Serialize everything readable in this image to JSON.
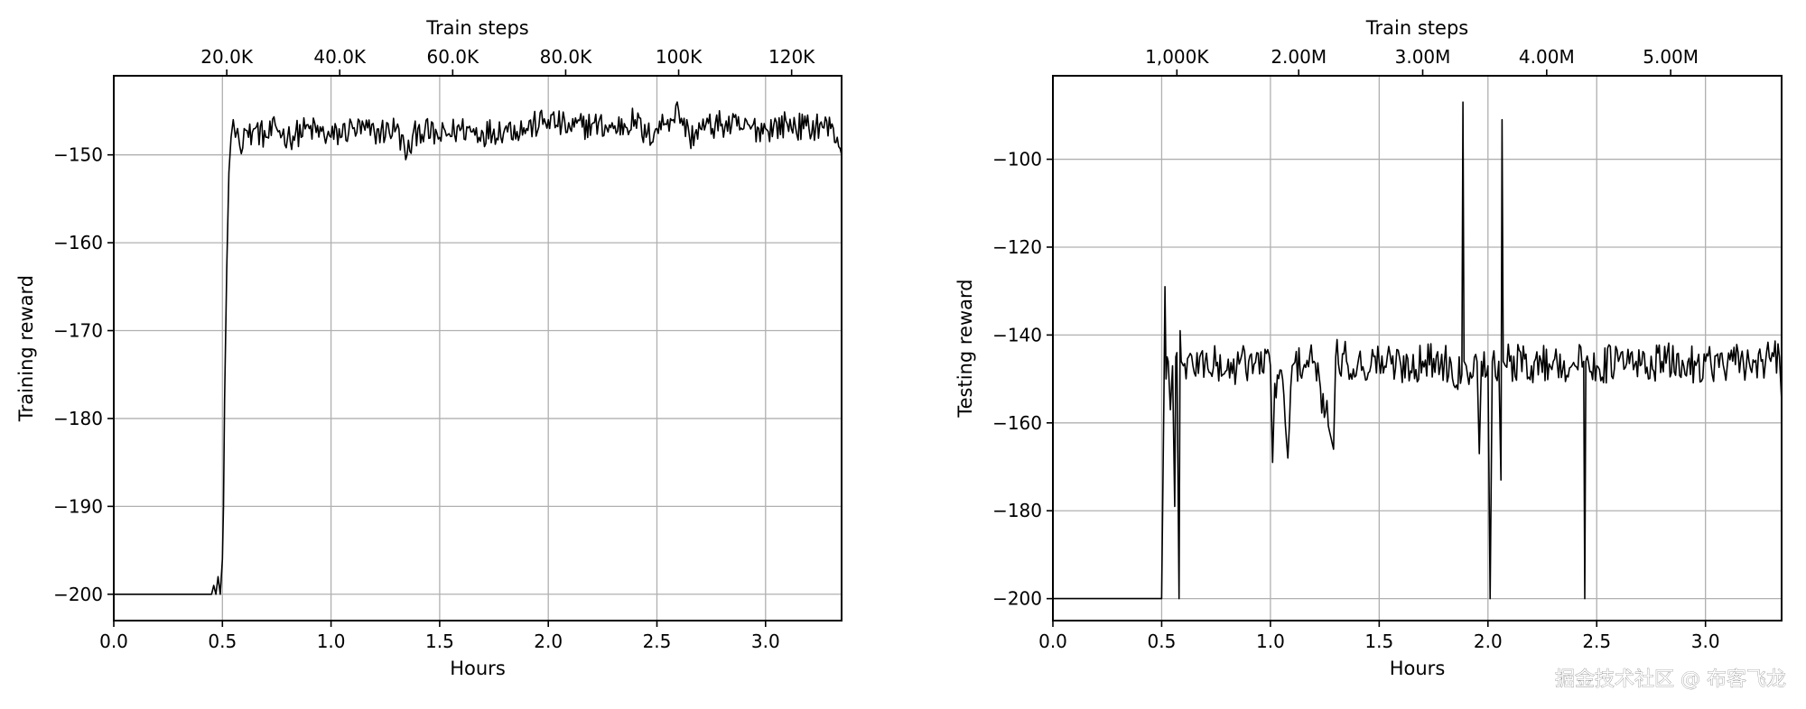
{
  "chart_data": [
    {
      "type": "line",
      "title": "",
      "xlabel": "Hours",
      "ylabel": "Training reward",
      "top_xlabel": "Train steps",
      "xlim": [
        0,
        3.35
      ],
      "ylim": [
        -203,
        -141
      ],
      "x_ticks": [
        0.0,
        0.5,
        1.0,
        1.5,
        2.0,
        2.5,
        3.0
      ],
      "x_tick_labels": [
        "0.0",
        "0.5",
        "1.0",
        "1.5",
        "2.0",
        "2.5",
        "3.0"
      ],
      "y_ticks": [
        -200,
        -190,
        -180,
        -170,
        -160,
        -150
      ],
      "y_tick_labels": [
        "−200",
        "−190",
        "−180",
        "−170",
        "−160",
        "−150"
      ],
      "top_ticks_hours": [
        0.52,
        1.04,
        1.56,
        2.08,
        2.6,
        3.12
      ],
      "top_tick_labels": [
        "20.0K",
        "40.0K",
        "60.0K",
        "80.0K",
        "100K",
        "120K"
      ],
      "grid": true,
      "series": [
        {
          "x": [
            0.0,
            0.1,
            0.2,
            0.3,
            0.4,
            0.45,
            0.46,
            0.47,
            0.48,
            0.49,
            0.5,
            0.505,
            0.51,
            0.52,
            0.53,
            0.54,
            0.55,
            0.56,
            0.57,
            0.58,
            0.6,
            0.62,
            0.65,
            0.7,
            0.75,
            0.8,
            0.9,
            1.0,
            1.1,
            1.2,
            1.3,
            1.35,
            1.4,
            1.5,
            1.6,
            1.7,
            1.8,
            1.9,
            2.0,
            2.1,
            2.2,
            2.3,
            2.4,
            2.45,
            2.5,
            2.55,
            2.6,
            2.65,
            2.7,
            2.8,
            2.9,
            3.0,
            3.1,
            3.2,
            3.25,
            3.3,
            3.33,
            3.35
          ],
          "y": [
            -200,
            -200,
            -200,
            -200,
            -200,
            -200,
            -199,
            -200,
            -198,
            -200,
            -196,
            -190,
            -178,
            -163,
            -152,
            -148,
            -146,
            -148,
            -147,
            -149,
            -147,
            -148,
            -147,
            -148,
            -147,
            -148,
            -147,
            -148,
            -147,
            -147.5,
            -147,
            -150,
            -147,
            -148,
            -147,
            -147.5,
            -147,
            -147,
            -146,
            -147,
            -146.5,
            -147,
            -146,
            -148,
            -147,
            -146,
            -145,
            -148,
            -147,
            -146.5,
            -147,
            -147,
            -146.5,
            -147,
            -146.5,
            -147,
            -148,
            -150
          ]
        }
      ]
    },
    {
      "type": "line",
      "title": "",
      "xlabel": "Hours",
      "ylabel": "Testing reward",
      "top_xlabel": "Train steps",
      "xlim": [
        0,
        3.35
      ],
      "ylim": [
        -205,
        -81
      ],
      "x_ticks": [
        0.0,
        0.5,
        1.0,
        1.5,
        2.0,
        2.5,
        3.0
      ],
      "x_tick_labels": [
        "0.0",
        "0.5",
        "1.0",
        "1.5",
        "2.0",
        "2.5",
        "3.0"
      ],
      "y_ticks": [
        -200,
        -180,
        -160,
        -140,
        -120,
        -100
      ],
      "y_tick_labels": [
        "−200",
        "−180",
        "−160",
        "−140",
        "−120",
        "−100"
      ],
      "top_ticks_hours": [
        0.57,
        1.13,
        1.7,
        2.27,
        2.84
      ],
      "top_tick_labels": [
        "1,000K",
        "2.00M",
        "3.00M",
        "4.00M",
        "5.00M"
      ],
      "grid": true,
      "series": [
        {
          "x": [
            0.0,
            0.1,
            0.2,
            0.3,
            0.4,
            0.5,
            0.51,
            0.515,
            0.52,
            0.525,
            0.53,
            0.54,
            0.55,
            0.56,
            0.565,
            0.57,
            0.58,
            0.585,
            0.59,
            0.6,
            0.7,
            0.8,
            0.9,
            1.0,
            1.01,
            1.02,
            1.05,
            1.08,
            1.1,
            1.2,
            1.29,
            1.3,
            1.35,
            1.4,
            1.5,
            1.6,
            1.7,
            1.8,
            1.88,
            1.885,
            1.89,
            1.9,
            1.95,
            1.96,
            1.97,
            2.0,
            2.01,
            2.02,
            2.05,
            2.06,
            2.065,
            2.07,
            2.08,
            2.1,
            2.2,
            2.3,
            2.4,
            2.44,
            2.445,
            2.45,
            2.5,
            2.6,
            2.7,
            2.8,
            2.9,
            3.0,
            3.1,
            3.2,
            3.3,
            3.34,
            3.35
          ],
          "y": [
            -200,
            -200,
            -200,
            -200,
            -200,
            -200,
            -155,
            -129,
            -150,
            -145,
            -146,
            -157,
            -147,
            -179,
            -145,
            -144,
            -200,
            -139,
            -146,
            -147,
            -146,
            -148,
            -146,
            -147,
            -169,
            -151,
            -148,
            -168,
            -147,
            -146,
            -166,
            -145,
            -146,
            -147,
            -146,
            -147,
            -146,
            -146,
            -149,
            -87,
            -146,
            -147,
            -146,
            -167,
            -146,
            -147,
            -200,
            -146,
            -146,
            -173,
            -91,
            -146,
            -147,
            -146,
            -147,
            -146,
            -147,
            -146,
            -200,
            -146,
            -147,
            -146,
            -147,
            -146,
            -147,
            -146,
            -147,
            -146,
            -146,
            -145,
            -155
          ]
        }
      ]
    }
  ],
  "watermark": "掘金技术社区 @ 布客飞龙"
}
